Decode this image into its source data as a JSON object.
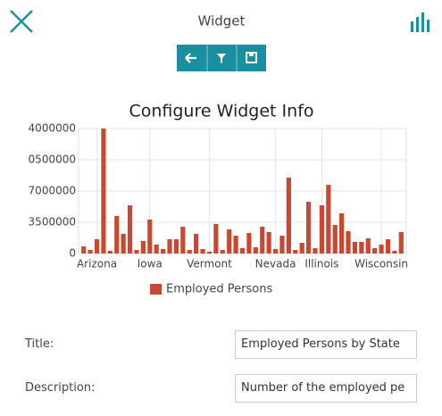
{
  "header": {
    "title": "Widget"
  },
  "section_title": "Configure Widget Info",
  "chart_data": {
    "type": "bar",
    "categories": [
      null,
      null,
      "Arizona",
      null,
      null,
      null,
      null,
      null,
      null,
      null,
      "Iowa",
      null,
      null,
      null,
      null,
      null,
      null,
      null,
      null,
      "Vermont",
      null,
      null,
      null,
      null,
      null,
      null,
      null,
      null,
      null,
      "Nevada",
      null,
      null,
      null,
      null,
      null,
      null,
      "Illinois",
      null,
      null,
      null,
      null,
      null,
      null,
      null,
      null,
      "Wisconsin",
      null,
      null,
      null
    ],
    "series": [
      {
        "name": "Employed Persons",
        "color": "#c9482f",
        "values": [
          800000,
          400000,
          1600000,
          14000000,
          300000,
          4200000,
          2200000,
          5400000,
          400000,
          1400000,
          3800000,
          1000000,
          500000,
          1600000,
          1600000,
          3000000,
          400000,
          2200000,
          500000,
          200000,
          3300000,
          400000,
          2700000,
          2000000,
          600000,
          2300000,
          700000,
          3000000,
          2400000,
          500000,
          2000000,
          8500000,
          400000,
          1200000,
          5800000,
          600000,
          5400000,
          7700000,
          3200000,
          4500000,
          2500000,
          1300000,
          1300000,
          1700000,
          600000,
          1000000,
          1600000,
          300000,
          2400000
        ]
      }
    ],
    "ylim": [
      0,
      14000000
    ],
    "yticks": [
      0,
      3500000,
      7000000,
      {
        "value": 10500000,
        "label": "0500000"
      },
      {
        "value": 14000000,
        "label": "4000000"
      }
    ],
    "grid": true,
    "legend": "bottom"
  },
  "form": {
    "fields": [
      {
        "label": "Title:",
        "value": "Employed Persons by State"
      },
      {
        "label": "Description:",
        "value": "Number of the employed pe"
      }
    ]
  }
}
